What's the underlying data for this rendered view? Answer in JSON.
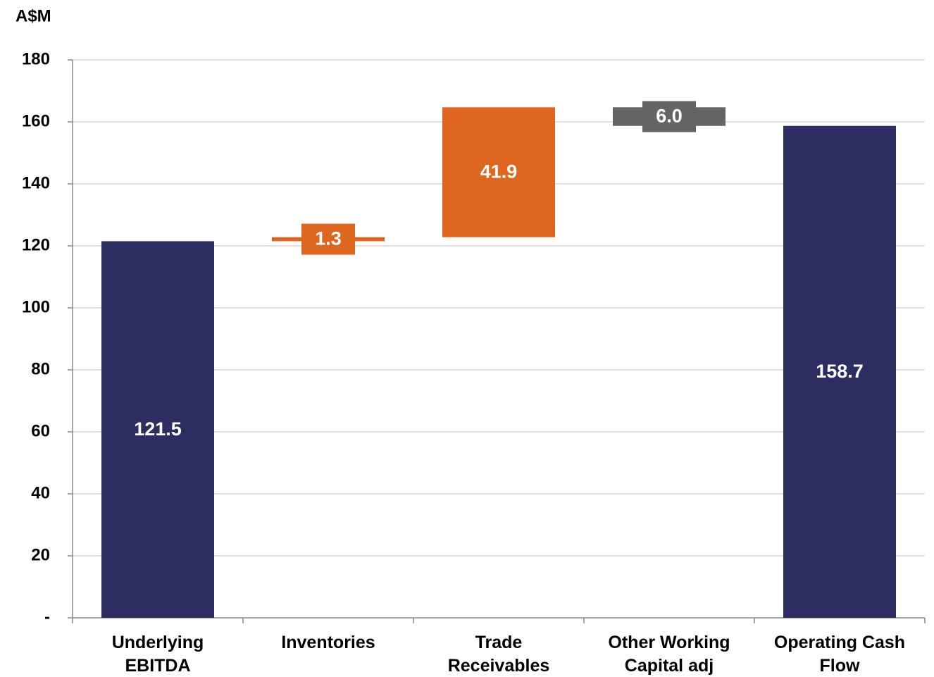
{
  "chart_data": {
    "type": "waterfall",
    "y_label": "A$M",
    "categories": [
      [
        "Underlying",
        "EBITDA"
      ],
      [
        "Inventories"
      ],
      [
        "Trade",
        "Receivables"
      ],
      [
        "Other Working",
        "Capital adj"
      ],
      [
        "Operating Cash",
        "Flow"
      ]
    ],
    "values": [
      121.5,
      1.3,
      41.9,
      -6.0,
      158.7
    ],
    "value_labels": [
      "121.5",
      "1.3",
      "41.9",
      "6.0",
      "158.7"
    ],
    "bar_kinds": [
      "total",
      "delta",
      "delta",
      "delta",
      "total"
    ],
    "colors": [
      "#2e2d62",
      "#df661e",
      "#df661e",
      "#636466",
      "#2e2d62"
    ],
    "ylim": [
      0,
      180
    ],
    "yticks": [
      {
        "value": 0,
        "label": "-"
      },
      20,
      40,
      60,
      80,
      100,
      120,
      140,
      160,
      180
    ],
    "grid": true
  }
}
